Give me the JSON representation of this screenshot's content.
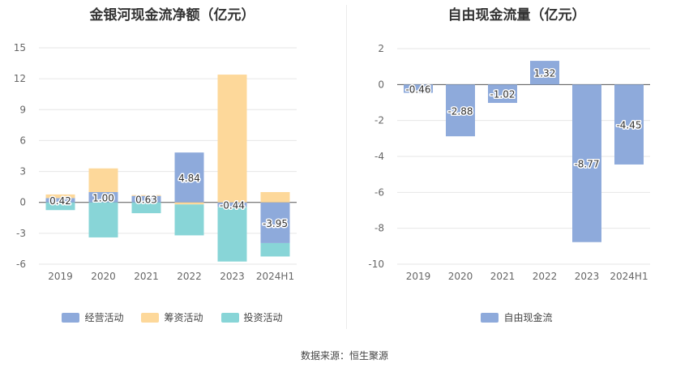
{
  "chart_data": [
    {
      "type": "bar",
      "stacked": true,
      "title": "金银河现金流净额（亿元）",
      "categories": [
        "2019",
        "2020",
        "2021",
        "2022",
        "2023",
        "2024H1"
      ],
      "ylim": [
        -6,
        15
      ],
      "yticks": [
        15,
        12,
        9,
        6,
        3,
        0,
        -3,
        -6
      ],
      "grid": true,
      "legend_position": "bottom",
      "series": [
        {
          "name": "经营活动",
          "color": "#8eaadb",
          "values": [
            0.42,
            1.0,
            0.63,
            4.84,
            -0.44,
            -3.95
          ]
        },
        {
          "name": "筹资活动",
          "color": "#fdd89a",
          "values": [
            0.35,
            2.3,
            0.08,
            -0.2,
            12.4,
            1.0
          ]
        },
        {
          "name": "投资活动",
          "color": "#88d5d7",
          "values": [
            -0.75,
            -3.4,
            -1.05,
            -3.0,
            -5.3,
            -1.3
          ]
        }
      ],
      "data_labels": [
        "0.42",
        "1.00",
        "0.63",
        "4.84",
        "-0.44",
        "-3.95"
      ]
    },
    {
      "type": "bar",
      "title": "自由现金流量（亿元）",
      "categories": [
        "2019",
        "2020",
        "2021",
        "2022",
        "2023",
        "2024H1"
      ],
      "ylim": [
        -10,
        2
      ],
      "yticks": [
        2,
        0,
        -2,
        -4,
        -6,
        -8,
        -10
      ],
      "grid": true,
      "legend_position": "bottom",
      "series": [
        {
          "name": "自由现金流",
          "color": "#8eaadb",
          "values": [
            -0.46,
            -2.88,
            -1.02,
            1.32,
            -8.77,
            -4.45
          ]
        }
      ],
      "data_labels": [
        "-0.46",
        "-2.88",
        "-1.02",
        "1.32",
        "-8.77",
        "-4.45"
      ]
    }
  ],
  "source": "数据来源：恒生聚源"
}
